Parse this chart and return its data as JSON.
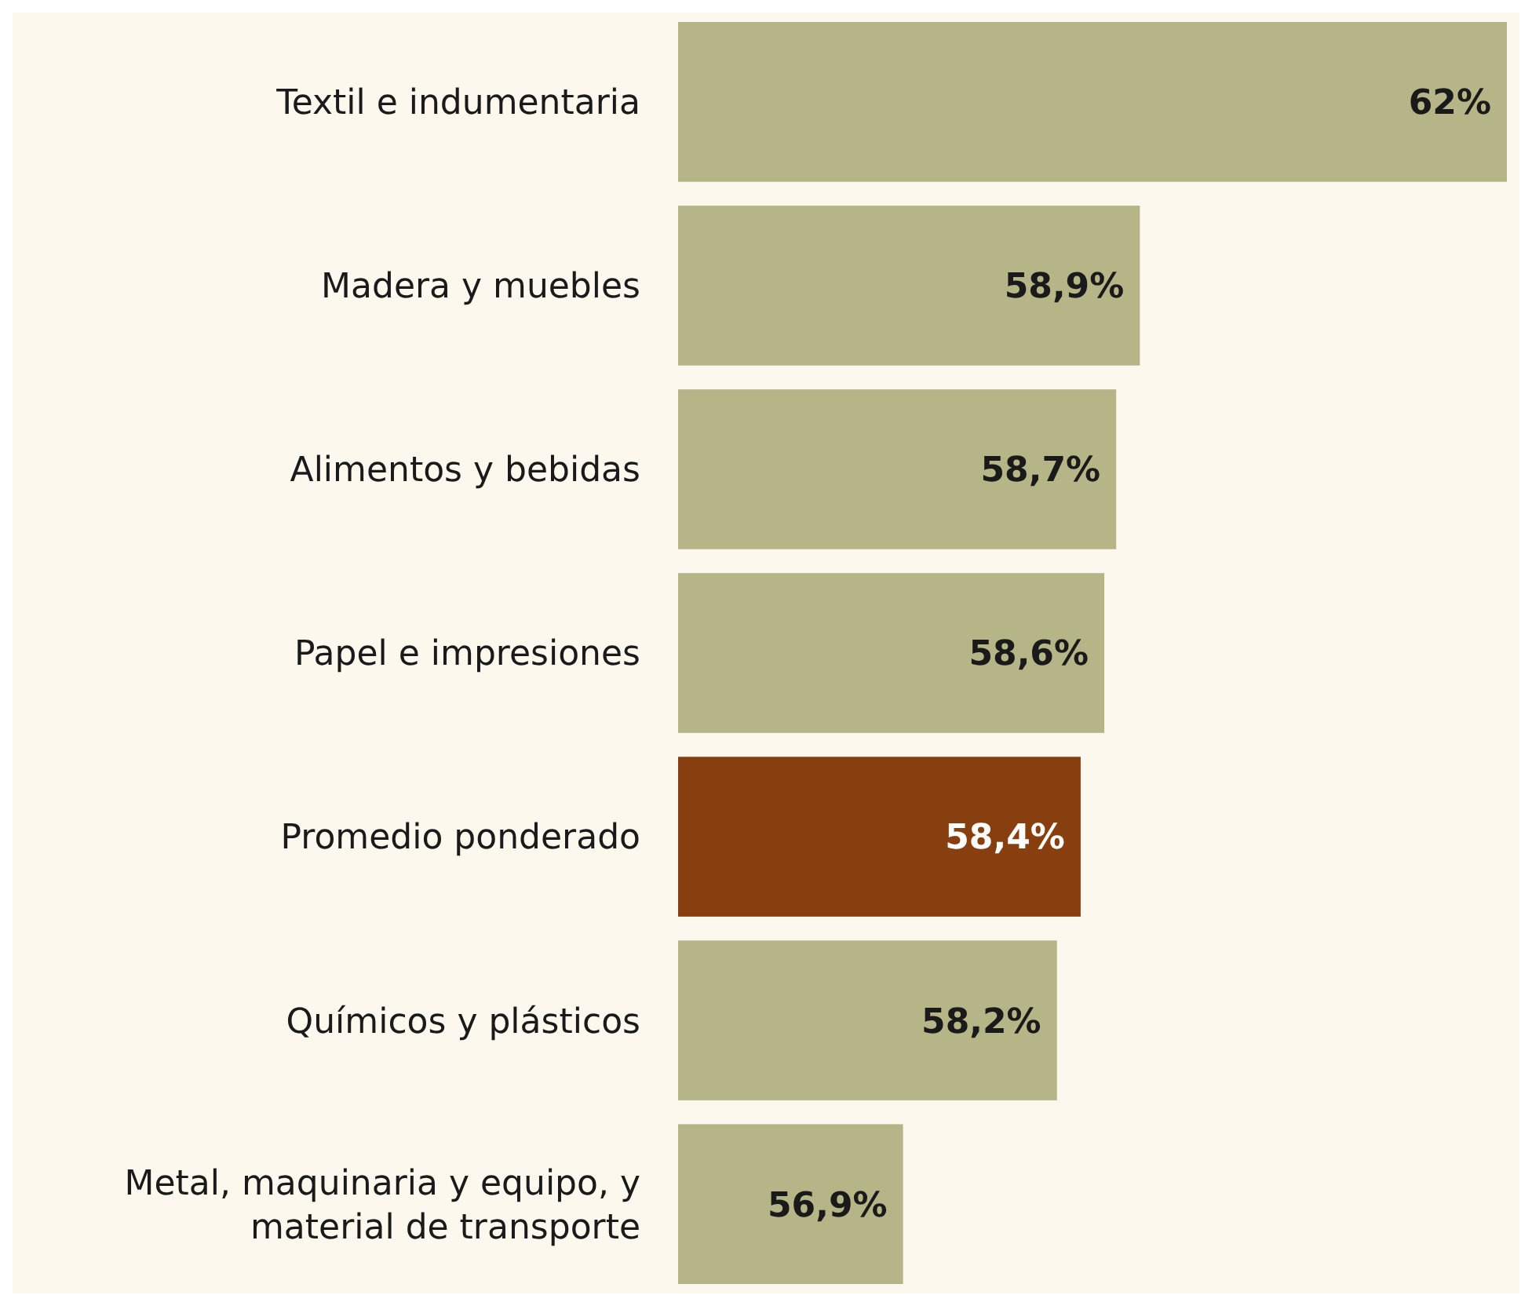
{
  "chart_data": {
    "type": "bar",
    "orientation": "horizontal",
    "categories": [
      "Textil e indumentaria",
      "Madera y muebles",
      "Alimentos y bebidas",
      "Papel e impresiones",
      "Promedio ponderado",
      "Químicos y plásticos",
      "Metal, maquinaria y equipo, y material de transporte"
    ],
    "values": [
      62,
      58.9,
      58.7,
      58.6,
      58.4,
      58.2,
      56.9
    ],
    "colors": [
      "#b5b587",
      "#b5b587",
      "#b5b587",
      "#b5b587",
      "#873f10",
      "#b5b587",
      "#b5b587"
    ],
    "value_labels": [
      "62%",
      "58,9%",
      "58,7%",
      "58,6%",
      "58,4%",
      "58,2%",
      "56,9%"
    ],
    "xlim": [
      55,
      62
    ],
    "tick_labels": "y"
  }
}
